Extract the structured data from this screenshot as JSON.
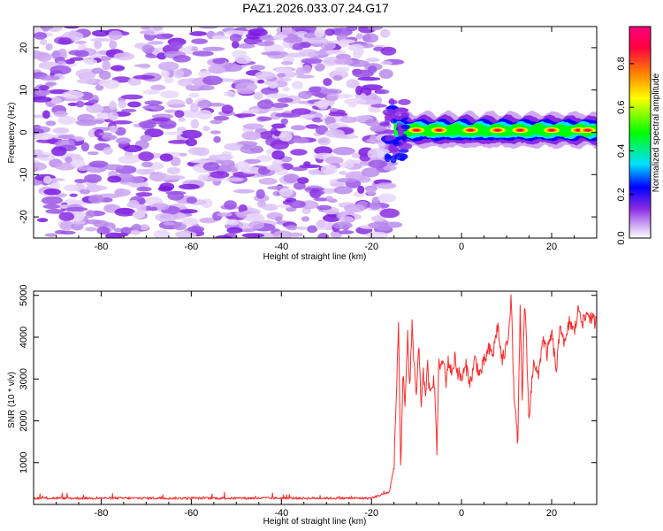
{
  "figure_title": "PAZ1.2026.033.07.24.G17",
  "chart_data": [
    {
      "type": "heatmap",
      "name": "spectrogram",
      "title": "PAZ1.2026.033.07.24.G17",
      "xlabel": "Height of straight line (km)",
      "ylabel": "Frequency (Hz)",
      "xlim": [
        -95,
        30
      ],
      "ylim": [
        -25,
        25
      ],
      "xticks": [
        -80,
        -60,
        -40,
        -20,
        0,
        20
      ],
      "yticks": [
        -20,
        -10,
        0,
        10,
        20
      ],
      "colorbar": {
        "label": "Normalized spectral amplitude",
        "range": [
          0,
          0.97
        ],
        "ticks": [
          0.0,
          0.2,
          0.4,
          0.6,
          0.8
        ],
        "tick_labels": [
          "0.0",
          "0.2",
          "0.4",
          "0.6",
          "0.8"
        ],
        "colormap": [
          "#ffffff",
          "#cfa8f2",
          "#8a2be2",
          "#0000ff",
          "#00e0ff",
          "#00ff00",
          "#ffff00",
          "#ff8000",
          "#ff0040",
          "#ff0080"
        ]
      },
      "regions": [
        {
          "description": "noise",
          "x_range": [
            -95,
            -15
          ],
          "freq_range": [
            -25,
            25
          ],
          "amplitude_range": [
            0.0,
            0.3
          ],
          "hue": "#8a2be2"
        },
        {
          "description": "signal band",
          "x_range": [
            -15,
            30
          ],
          "freq_center": 0.5,
          "freq_halfwidth": 2,
          "amplitude_range": [
            0.4,
            0.95
          ]
        }
      ]
    },
    {
      "type": "line",
      "name": "snr",
      "xlabel": "Height of straight line (km)",
      "ylabel": "SNR (10 * v/v)",
      "xlim": [
        -95,
        30
      ],
      "ylim": [
        0,
        5100
      ],
      "xticks": [
        -80,
        -60,
        -40,
        -20,
        0,
        20
      ],
      "yticks": [
        1000,
        2000,
        3000,
        4000,
        5000
      ],
      "series": [
        {
          "name": "SNR",
          "color": "#ff2a2a",
          "x": [
            -95,
            -20,
            -16,
            -15,
            -14.5,
            -14,
            -13.5,
            -13,
            -12.5,
            -12,
            -11.5,
            -11,
            -10.5,
            -10,
            -9.5,
            -9,
            -8.5,
            -8,
            -7.5,
            -7,
            -6.5,
            -6,
            -5.5,
            -5,
            -4.5,
            -4,
            -3.5,
            -3,
            -2.5,
            -2,
            -1.5,
            -1,
            0,
            1,
            2,
            3,
            4,
            5,
            6,
            7,
            8,
            9,
            10,
            10.5,
            11,
            11.5,
            12,
            12.5,
            13,
            13.5,
            14,
            14.5,
            15,
            16,
            17,
            18,
            19,
            20,
            21,
            22,
            23,
            24,
            25,
            26,
            27,
            28,
            29,
            30
          ],
          "y": [
            150,
            150,
            300,
            900,
            2500,
            4400,
            800,
            3000,
            2300,
            4100,
            2800,
            4300,
            3200,
            2600,
            3800,
            2400,
            3100,
            2700,
            3300,
            2500,
            3000,
            2900,
            1200,
            3500,
            3200,
            3500,
            2900,
            3400,
            3300,
            3100,
            3600,
            3200,
            3000,
            3300,
            2900,
            3500,
            3100,
            3400,
            3700,
            3600,
            4300,
            3400,
            3800,
            4200,
            5050,
            3000,
            2100,
            1500,
            4600,
            2400,
            5000,
            3500,
            2000,
            3500,
            3000,
            4000,
            3600,
            4100,
            3200,
            4300,
            3800,
            4400,
            4100,
            4700,
            4350,
            4600,
            4400,
            4350
          ]
        }
      ]
    }
  ]
}
